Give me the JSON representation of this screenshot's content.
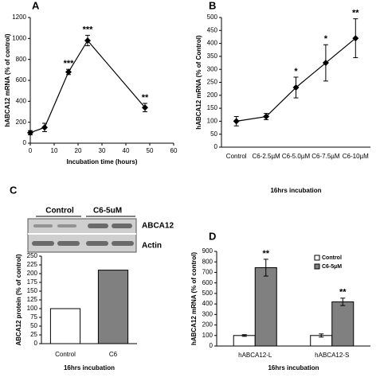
{
  "chart_data": [
    {
      "type": "line",
      "panel": "A",
      "x": [
        0,
        6,
        16,
        24,
        48
      ],
      "values": [
        100,
        150,
        680,
        980,
        340
      ],
      "errors": [
        20,
        40,
        25,
        50,
        40
      ],
      "annotations": [
        null,
        null,
        "***",
        "***",
        "**"
      ],
      "xlim": [
        0,
        60
      ],
      "xticks": [
        0,
        10,
        20,
        30,
        40,
        50,
        60
      ],
      "ylim": [
        0,
        1200
      ],
      "yticks": [
        0,
        200,
        400,
        600,
        800,
        1000,
        1200
      ],
      "color": "#000000",
      "y_label": "hABCA12 mRNA (% of control)",
      "x_label": "Incubation time (hours)"
    },
    {
      "type": "line",
      "panel": "B",
      "categories": [
        "Control",
        "C6-2.5µM",
        "C6-5.0µM",
        "C6-7.5µM",
        "C6-10µM"
      ],
      "values": [
        100,
        118,
        230,
        325,
        420
      ],
      "errors": [
        18,
        12,
        40,
        70,
        75
      ],
      "annotations": [
        null,
        null,
        "*",
        "*",
        "**"
      ],
      "ylim": [
        0,
        500
      ],
      "yticks": [
        0,
        50,
        100,
        150,
        200,
        250,
        300,
        350,
        400,
        450,
        500
      ],
      "color": "#000000",
      "y_label": "hABCA12 mRNA (% of Control)",
      "x_label": "16hrs incubation"
    },
    {
      "type": "bar",
      "panel": "C",
      "categories": [
        "Control",
        "C6"
      ],
      "values": [
        100,
        210
      ],
      "colors": [
        "#ffffff",
        "#808080"
      ],
      "ylim": [
        0,
        250
      ],
      "yticks": [
        0,
        25,
        50,
        75,
        100,
        125,
        150,
        175,
        200,
        225,
        250
      ],
      "y_label": "ABCA12 protein (% of control)",
      "x_label": "16hrs incubation",
      "blot": {
        "lanes": [
          "Control",
          "C6-5uM"
        ],
        "bands": [
          "ABCA12",
          "Actin"
        ]
      }
    },
    {
      "type": "bar",
      "panel": "D",
      "categories": [
        "hABCA12-L",
        "hABCA12-S"
      ],
      "series": [
        {
          "name": "Control",
          "color": "#ffffff",
          "values": [
            100,
            100
          ],
          "errors": [
            8,
            15
          ]
        },
        {
          "name": "C6-5µM",
          "color": "#808080",
          "values": [
            745,
            420
          ],
          "errors": [
            80,
            35
          ],
          "annotations": [
            "**",
            "**"
          ]
        }
      ],
      "ylim": [
        0,
        900
      ],
      "yticks": [
        0,
        100,
        200,
        300,
        400,
        500,
        600,
        700,
        800,
        900
      ],
      "legend": "upper right",
      "y_label": "hABCA12 mRNA (% of control)",
      "x_label": "16hrs incubation"
    }
  ]
}
